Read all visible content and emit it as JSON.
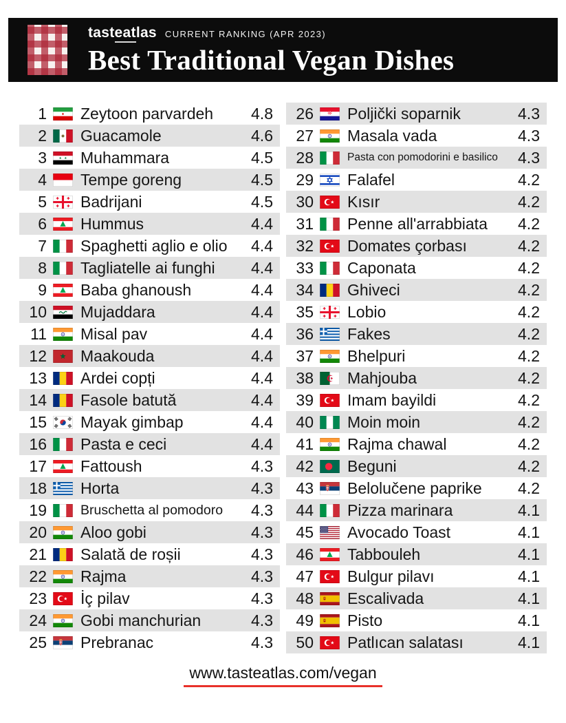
{
  "header": {
    "brand": {
      "pre": "tast",
      "underline": "eat",
      "post": "las"
    },
    "ranking_label": "CURRENT RANKING (APR 2023)",
    "title": "Best Traditional Vegan Dishes"
  },
  "colors": {
    "header_bg": "#0c0c0c",
    "accent_red": "#e8312a",
    "row_stripe": "#e2e2e2",
    "checker_red": "#ad2637",
    "text": "#161616"
  },
  "footer": {
    "url": "www.tasteatlas.com/vegan"
  },
  "chart_data": {
    "type": "table",
    "title": "Best Traditional Vegan Dishes",
    "subtitle": "CURRENT RANKING (APR 2023)",
    "columns": [
      "rank",
      "country",
      "dish",
      "rating"
    ],
    "rows": [
      {
        "rank": 1,
        "country": "iran",
        "dish": "Zeytoon parvardeh",
        "rating": "4.8"
      },
      {
        "rank": 2,
        "country": "mexico",
        "dish": "Guacamole",
        "rating": "4.6"
      },
      {
        "rank": 3,
        "country": "syria",
        "dish": "Muhammara",
        "rating": "4.5"
      },
      {
        "rank": 4,
        "country": "indonesia",
        "dish": "Tempe goreng",
        "rating": "4.5"
      },
      {
        "rank": 5,
        "country": "georgia",
        "dish": "Badrijani",
        "rating": "4.5"
      },
      {
        "rank": 6,
        "country": "lebanon",
        "dish": "Hummus",
        "rating": "4.4"
      },
      {
        "rank": 7,
        "country": "italy",
        "dish": "Spaghetti aglio e olio",
        "rating": "4.4"
      },
      {
        "rank": 8,
        "country": "italy",
        "dish": "Tagliatelle ai funghi",
        "rating": "4.4"
      },
      {
        "rank": 9,
        "country": "lebanon",
        "dish": "Baba ghanoush",
        "rating": "4.4"
      },
      {
        "rank": 10,
        "country": "iraq",
        "dish": "Mujaddara",
        "rating": "4.4"
      },
      {
        "rank": 11,
        "country": "india",
        "dish": "Misal pav",
        "rating": "4.4"
      },
      {
        "rank": 12,
        "country": "morocco",
        "dish": "Maakouda",
        "rating": "4.4"
      },
      {
        "rank": 13,
        "country": "romania",
        "dish": "Ardei copți",
        "rating": "4.4"
      },
      {
        "rank": 14,
        "country": "romania",
        "dish": "Fasole batută",
        "rating": "4.4"
      },
      {
        "rank": 15,
        "country": "south-korea",
        "dish": "Mayak gimbap",
        "rating": "4.4"
      },
      {
        "rank": 16,
        "country": "italy",
        "dish": "Pasta e ceci",
        "rating": "4.4"
      },
      {
        "rank": 17,
        "country": "lebanon",
        "dish": "Fattoush",
        "rating": "4.3"
      },
      {
        "rank": 18,
        "country": "greece",
        "dish": "Horta",
        "rating": "4.3"
      },
      {
        "rank": 19,
        "country": "italy",
        "dish": "Bruschetta al pomodoro",
        "rating": "4.3",
        "size": "sm"
      },
      {
        "rank": 20,
        "country": "india",
        "dish": "Aloo gobi",
        "rating": "4.3"
      },
      {
        "rank": 21,
        "country": "romania",
        "dish": "Salată de roșii",
        "rating": "4.3"
      },
      {
        "rank": 22,
        "country": "india",
        "dish": "Rajma",
        "rating": "4.3"
      },
      {
        "rank": 23,
        "country": "turkey",
        "dish": "İç pilav",
        "rating": "4.3"
      },
      {
        "rank": 24,
        "country": "india",
        "dish": "Gobi manchurian",
        "rating": "4.3"
      },
      {
        "rank": 25,
        "country": "serbia",
        "dish": "Prebranac",
        "rating": "4.3"
      },
      {
        "rank": 26,
        "country": "croatia",
        "dish": "Poljički soparnik",
        "rating": "4.3"
      },
      {
        "rank": 27,
        "country": "india",
        "dish": "Masala vada",
        "rating": "4.3"
      },
      {
        "rank": 28,
        "country": "italy",
        "dish": "Pasta con pomodorini e basilico",
        "rating": "4.3",
        "size": "xs"
      },
      {
        "rank": 29,
        "country": "israel",
        "dish": "Falafel",
        "rating": "4.2"
      },
      {
        "rank": 30,
        "country": "turkey",
        "dish": "Kısır",
        "rating": "4.2"
      },
      {
        "rank": 31,
        "country": "italy",
        "dish": "Penne all'arrabbiata",
        "rating": "4.2"
      },
      {
        "rank": 32,
        "country": "turkey",
        "dish": "Domates çorbası",
        "rating": "4.2"
      },
      {
        "rank": 33,
        "country": "italy",
        "dish": "Caponata",
        "rating": "4.2"
      },
      {
        "rank": 34,
        "country": "romania",
        "dish": "Ghiveci",
        "rating": "4.2"
      },
      {
        "rank": 35,
        "country": "georgia",
        "dish": "Lobio",
        "rating": "4.2"
      },
      {
        "rank": 36,
        "country": "greece",
        "dish": "Fakes",
        "rating": "4.2"
      },
      {
        "rank": 37,
        "country": "india",
        "dish": "Bhelpuri",
        "rating": "4.2"
      },
      {
        "rank": 38,
        "country": "algeria",
        "dish": "Mahjouba",
        "rating": "4.2"
      },
      {
        "rank": 39,
        "country": "turkey",
        "dish": "Imam bayildi",
        "rating": "4.2"
      },
      {
        "rank": 40,
        "country": "nigeria",
        "dish": "Moin moin",
        "rating": "4.2"
      },
      {
        "rank": 41,
        "country": "india",
        "dish": "Rajma chawal",
        "rating": "4.2"
      },
      {
        "rank": 42,
        "country": "bangladesh",
        "dish": "Beguni",
        "rating": "4.2"
      },
      {
        "rank": 43,
        "country": "serbia",
        "dish": "Belolučene paprike",
        "rating": "4.2"
      },
      {
        "rank": 44,
        "country": "italy",
        "dish": "Pizza marinara",
        "rating": "4.1"
      },
      {
        "rank": 45,
        "country": "usa",
        "dish": "Avocado Toast",
        "rating": "4.1"
      },
      {
        "rank": 46,
        "country": "lebanon",
        "dish": "Tabbouleh",
        "rating": "4.1"
      },
      {
        "rank": 47,
        "country": "turkey",
        "dish": "Bulgur pilavı",
        "rating": "4.1"
      },
      {
        "rank": 48,
        "country": "spain",
        "dish": "Escalivada",
        "rating": "4.1"
      },
      {
        "rank": 49,
        "country": "spain",
        "dish": "Pisto",
        "rating": "4.1"
      },
      {
        "rank": 50,
        "country": "turkey",
        "dish": "Patlıcan salatası",
        "rating": "4.1"
      }
    ]
  }
}
